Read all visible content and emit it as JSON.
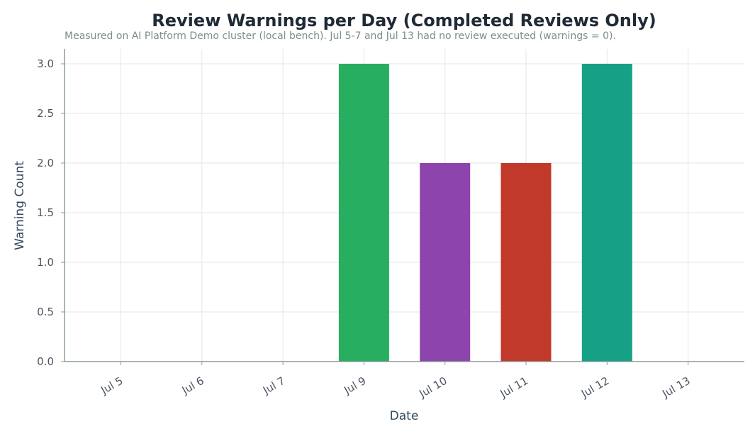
{
  "chart_data": {
    "type": "bar",
    "title": "Review Warnings per Day (Completed Reviews Only)",
    "subtitle": "Measured on AI Platform Demo cluster (local bench). Jul 5-7 and Jul 13 had no review executed (warnings = 0).",
    "xlabel": "Date",
    "ylabel": "Warning Count",
    "categories": [
      "Jul 5",
      "Jul 6",
      "Jul 7",
      "Jul 9",
      "Jul 10",
      "Jul 11",
      "Jul 12",
      "Jul 13"
    ],
    "values": [
      0,
      0,
      0,
      3,
      2,
      2,
      3,
      0
    ],
    "colors": [
      "#27ae60",
      "#27ae60",
      "#27ae60",
      "#27ae60",
      "#8e44ad",
      "#c0392b",
      "#16a085",
      "#27ae60"
    ],
    "ylim": [
      0,
      3.15
    ],
    "yticks": [
      "0.0",
      "0.5",
      "1.0",
      "1.5",
      "2.0",
      "2.5",
      "3.0"
    ],
    "grid": true,
    "legend": "none"
  }
}
